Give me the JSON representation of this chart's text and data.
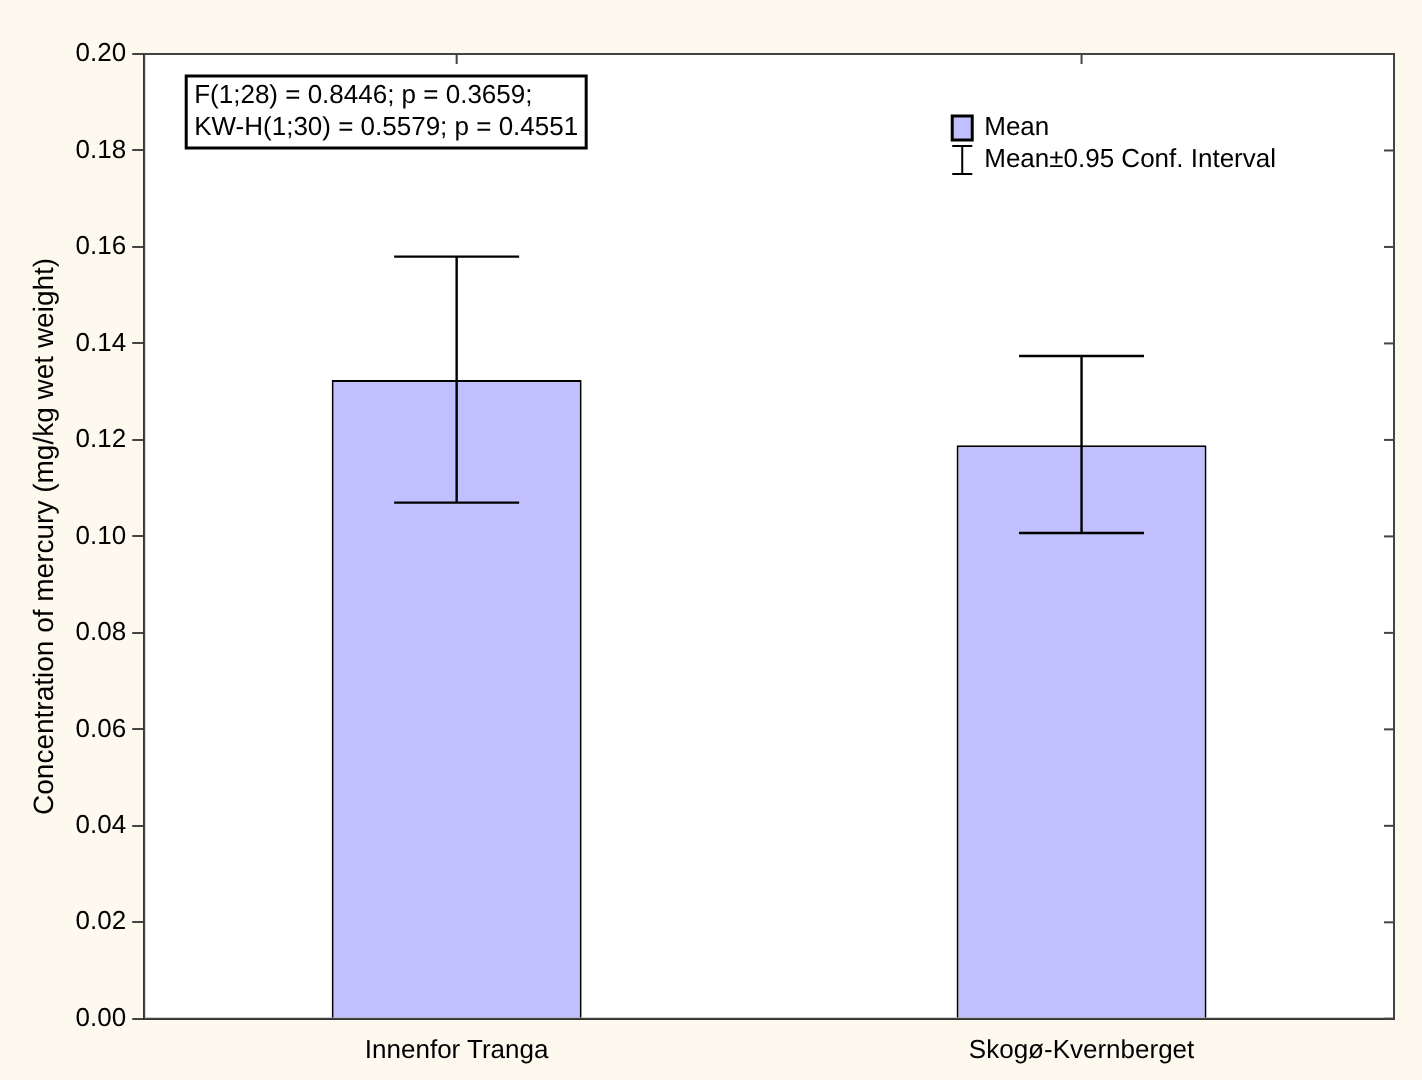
{
  "chart_data": {
    "type": "bar",
    "ylabel": "Concentration of mercury (mg/kg wet weight)",
    "categories": [
      "Innenfor Tranga",
      "Skogø-Kvernberget"
    ],
    "series": [
      {
        "name": "Mean",
        "color": "#c0c0ff",
        "values": [
          0.1324,
          0.1189
        ],
        "errors": [
          [
            0.107,
            0.158
          ],
          [
            0.1007,
            0.1374
          ]
        ]
      }
    ],
    "ylim": [
      0,
      0.2
    ],
    "yticks": [
      {
        "value": 0,
        "label": "0.00"
      },
      0.02,
      0.04,
      0.06,
      0.08,
      {
        "value": 0.1,
        "label": "0.10"
      },
      0.12,
      0.14,
      0.16,
      0.18,
      {
        "value": 0.2,
        "label": "0.20"
      }
    ],
    "annotations": [
      "F(1;28) = 0.8446; p = 0.3659;",
      "KW-H(1;30) = 0.5579; p = 0.4551",
      "Mean±0.95 Conf. Interval"
    ],
    "legend": "top right",
    "grid": false
  }
}
